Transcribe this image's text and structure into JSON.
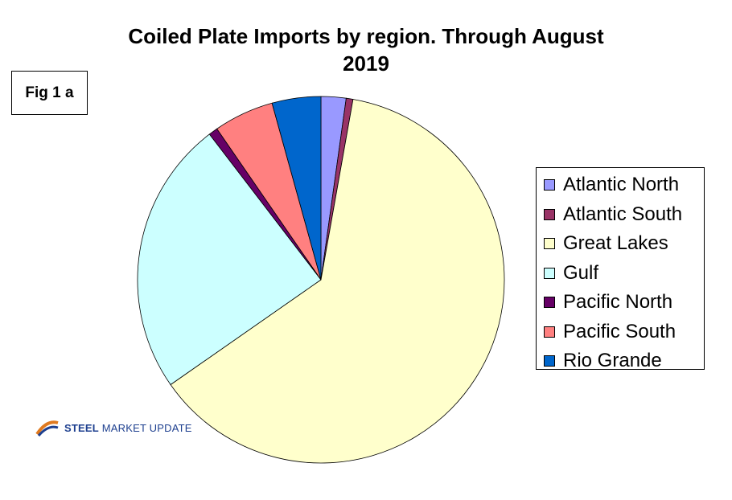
{
  "figure_label": "Fig 1 a",
  "logo": {
    "word1": "STEEL",
    "word2": "MARKET UPDATE"
  },
  "chart_data": {
    "type": "pie",
    "title_line1": "Coiled Plate Imports by region. Through August",
    "title_line2": "2019",
    "legend_position": "right",
    "slices": [
      {
        "label": "Atlantic North",
        "value": 2.2,
        "color": "#9999ff"
      },
      {
        "label": "Atlantic South",
        "value": 0.6,
        "color": "#993366"
      },
      {
        "label": "Great Lakes",
        "value": 62.5,
        "color": "#ffffcc"
      },
      {
        "label": "Gulf",
        "value": 24.3,
        "color": "#ccffff"
      },
      {
        "label": "Pacific North",
        "value": 0.8,
        "color": "#660066"
      },
      {
        "label": "Pacific South",
        "value": 5.3,
        "color": "#ff8080"
      },
      {
        "label": "Rio Grande",
        "value": 4.3,
        "color": "#0066cc"
      }
    ]
  }
}
